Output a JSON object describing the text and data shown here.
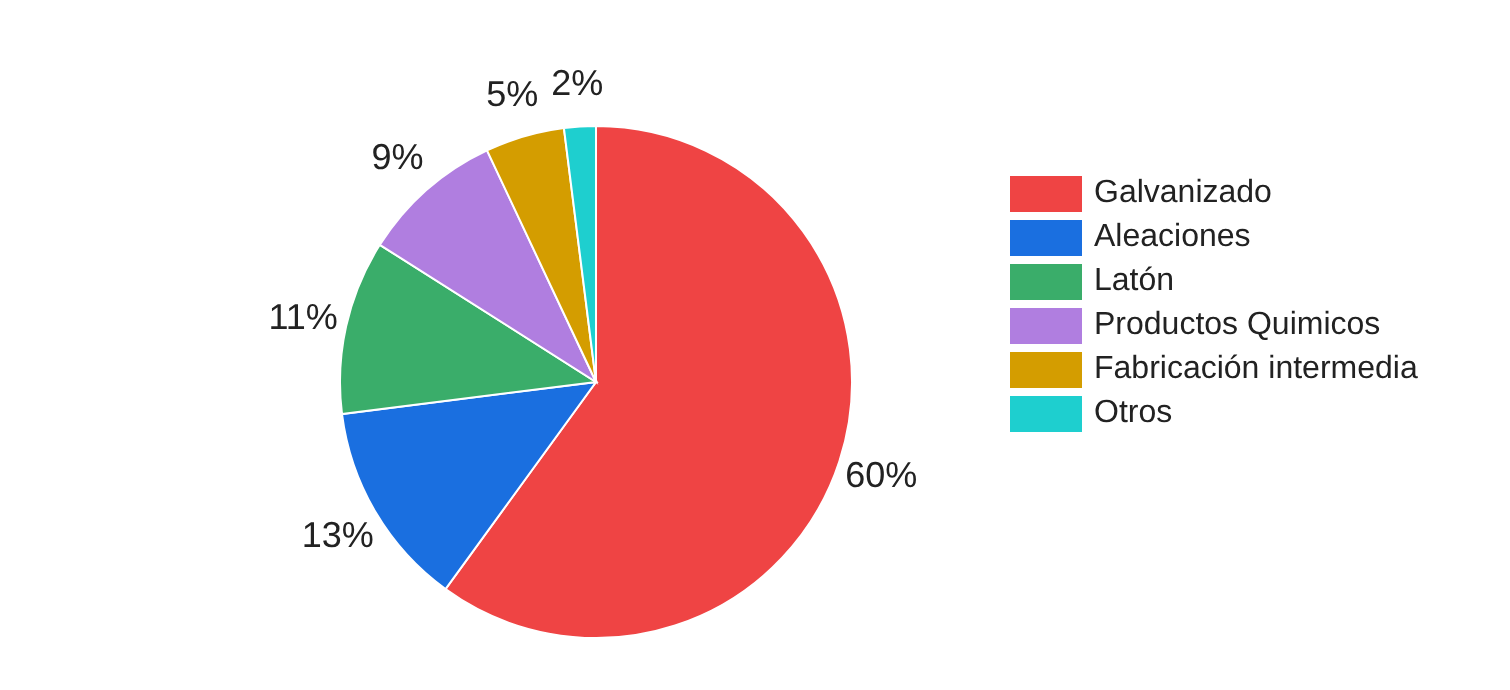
{
  "chart_data": {
    "type": "pie",
    "categories": [
      "Galvanizado",
      "Aleaciones",
      "Latón",
      "Productos Quimicos",
      "Fabricación intermedia",
      "Otros"
    ],
    "values": [
      60,
      13,
      11,
      9,
      5,
      2
    ],
    "value_labels": [
      "60%",
      "13%",
      "11%",
      "9%",
      "5%",
      "2%"
    ],
    "colors": [
      "#ef4444",
      "#1a6fe0",
      "#3aad6a",
      "#b07ee0",
      "#d49d00",
      "#1ecfcf"
    ],
    "legend": "right"
  }
}
